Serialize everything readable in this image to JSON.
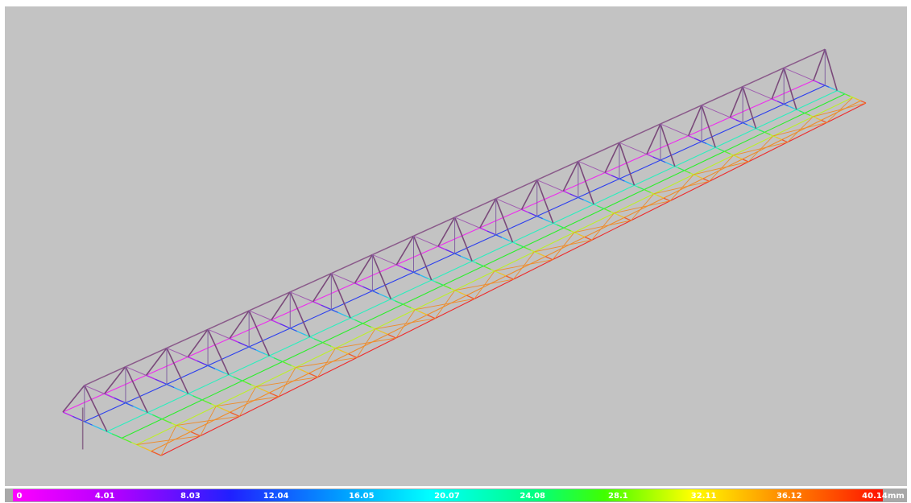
{
  "legend": {
    "labels": [
      "0",
      "4.01",
      "8.03",
      "12.04",
      "16.05",
      "20.07",
      "24.08",
      "28.1",
      "32.11",
      "36.12",
      "40.14"
    ],
    "unit": "mm"
  }
}
